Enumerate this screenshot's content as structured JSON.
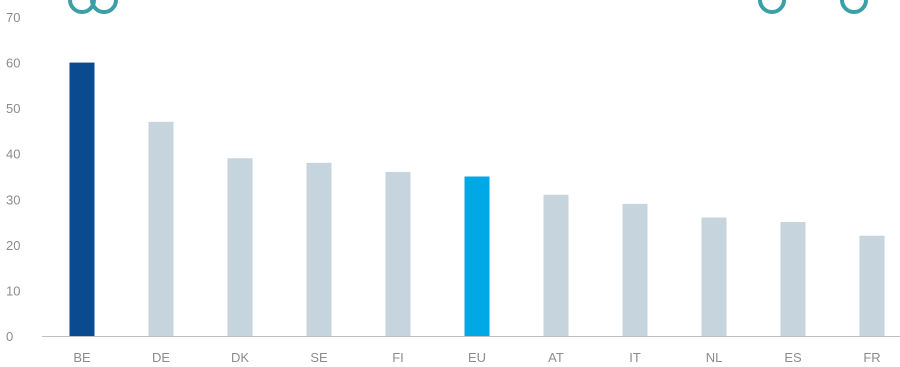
{
  "chart_data": {
    "type": "bar",
    "categories": [
      "BE",
      "DE",
      "DK",
      "SE",
      "FI",
      "EU",
      "AT",
      "IT",
      "NL",
      "ES",
      "FR"
    ],
    "values": [
      60,
      47,
      39,
      38,
      36,
      35,
      31,
      29,
      26,
      25,
      22
    ],
    "highlight": {
      "BE": "#0a4a8f",
      "EU": "#00a9e6"
    },
    "default_color": "#c5d4dd",
    "ylim": [
      0,
      70
    ],
    "yticks": [
      0,
      10,
      20,
      30,
      40,
      50,
      60,
      70
    ],
    "title": "",
    "xlabel": "",
    "ylabel": "",
    "grid": false,
    "colors": {
      "axis": "#bfbfbf",
      "tick_text": "#8c8c8c",
      "decoration": "#3a9fa6"
    }
  }
}
